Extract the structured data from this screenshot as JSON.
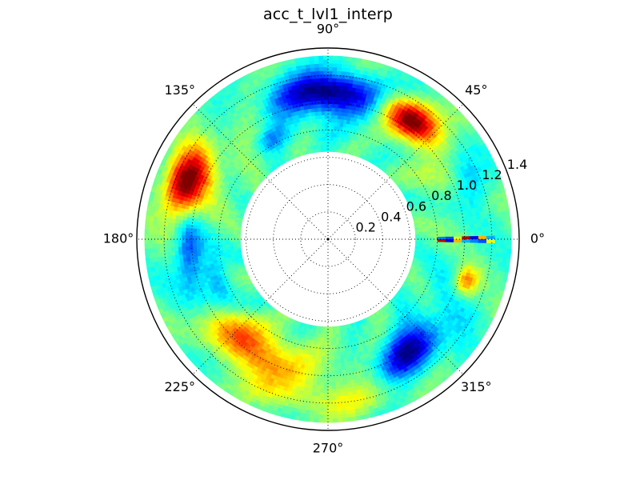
{
  "chart_data": {
    "type": "heatmap",
    "projection": "polar",
    "title": "acc_t_lvl1_interp",
    "colormap": "jet",
    "grid": true,
    "angular_ticks_deg": [
      0,
      45,
      90,
      135,
      180,
      225,
      270,
      315
    ],
    "angular_tick_labels": [
      "0°",
      "45°",
      "90°",
      "135°",
      "180°",
      "225°",
      "270°",
      "315°"
    ],
    "radial_ticks": [
      0.2,
      0.4,
      0.6,
      0.8,
      1.0,
      1.2,
      1.4
    ],
    "radial_tick_labels": [
      "0.2",
      "0.4",
      "0.6",
      "0.8",
      "1.0",
      "1.2",
      "1.4"
    ],
    "rlim": [
      0,
      1.4
    ],
    "data_r_range": [
      0.64,
      1.34
    ],
    "value_scale": "normalized 0 (blue) to 1 (red)",
    "background_value": 0.45,
    "features": [
      {
        "angle_deg": 90,
        "r": 1.08,
        "value": 0.02,
        "angular_width_deg": 20,
        "radial_width": 0.14
      },
      {
        "angle_deg": 55,
        "r": 1.06,
        "value": 0.98,
        "angular_width_deg": 13,
        "radial_width": 0.13
      },
      {
        "angle_deg": 158,
        "r": 1.12,
        "value": 0.97,
        "angular_width_deg": 13,
        "radial_width": 0.15
      },
      {
        "angle_deg": 185,
        "r": 1.02,
        "value": 0.2,
        "angular_width_deg": 14,
        "radial_width": 0.1
      },
      {
        "angle_deg": 233,
        "r": 0.98,
        "value": 0.82,
        "angular_width_deg": 22,
        "radial_width": 0.18
      },
      {
        "angle_deg": 305,
        "r": 1.02,
        "value": 0.06,
        "angular_width_deg": 15,
        "radial_width": 0.15
      },
      {
        "angle_deg": 343,
        "r": 1.06,
        "value": 0.78,
        "angular_width_deg": 6,
        "radial_width": 0.09
      },
      {
        "angle_deg": 22,
        "r": 1.12,
        "value": 0.25,
        "angular_width_deg": 10,
        "radial_width": 0.14
      },
      {
        "angle_deg": 120,
        "r": 0.84,
        "value": 0.3,
        "angular_width_deg": 10,
        "radial_width": 0.08
      },
      {
        "angle_deg": 200,
        "r": 0.86,
        "value": 0.3,
        "angular_width_deg": 12,
        "radial_width": 0.08
      },
      {
        "angle_deg": 270,
        "r": 1.2,
        "value": 0.55,
        "angular_width_deg": 30,
        "radial_width": 0.12
      }
    ],
    "seam": {
      "angle_deg": 0,
      "r_range": [
        0.8,
        1.22
      ],
      "values": [
        0.25,
        0.2,
        0.6,
        0.95,
        0.1,
        0.7,
        0.3
      ]
    }
  }
}
